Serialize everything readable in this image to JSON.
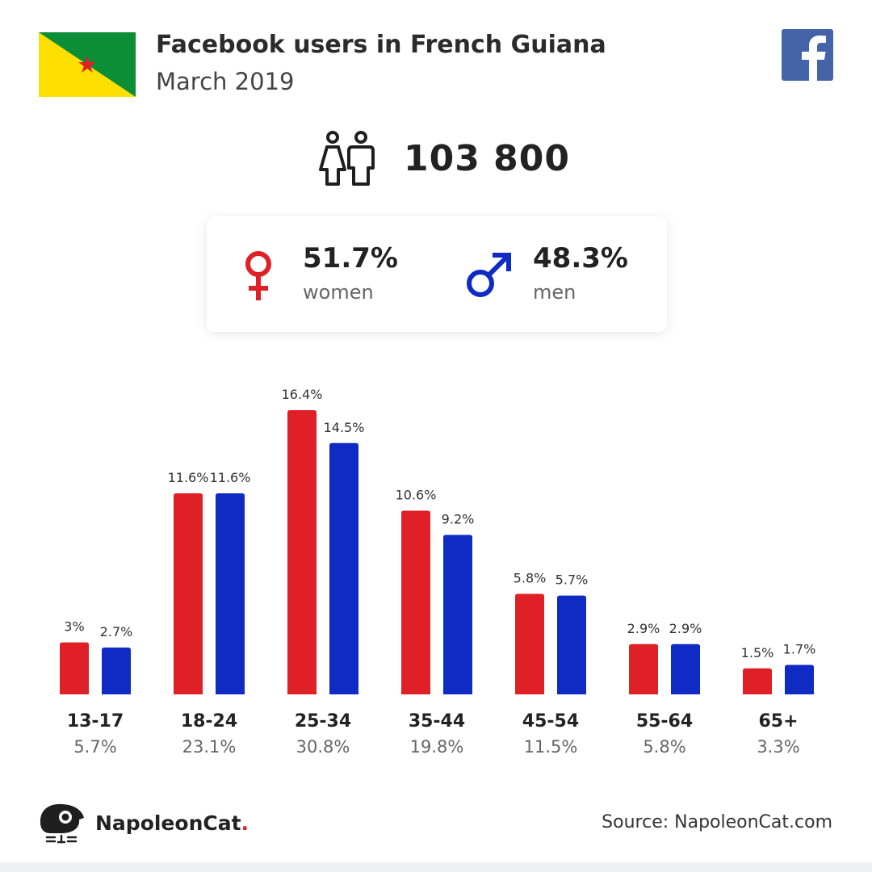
{
  "header": {
    "title": "Facebook users in French Guiana",
    "subtitle": "March 2019"
  },
  "icons": {
    "flag": "french-guiana-flag-icon",
    "brand": "facebook-icon",
    "total": "users-icon",
    "female": "female-symbol-icon",
    "male": "male-symbol-icon",
    "logo": "napoleoncat-logo-icon"
  },
  "totals": {
    "users": "103 800"
  },
  "gender": {
    "women_pct": "51.7%",
    "women_label": "women",
    "men_pct": "48.3%",
    "men_label": "men"
  },
  "colors": {
    "women": "#e02027",
    "men": "#0f2bc3",
    "facebook": "#4463a8",
    "flag_green": "#0b8e36",
    "flag_yellow": "#fde000",
    "flag_star": "#e02027"
  },
  "chart_data": {
    "type": "bar",
    "categories": [
      "13-17",
      "18-24",
      "25-34",
      "35-44",
      "45-54",
      "55-64",
      "65+"
    ],
    "category_totals": [
      "5.7%",
      "23.1%",
      "30.8%",
      "19.8%",
      "11.5%",
      "5.8%",
      "3.3%"
    ],
    "series": [
      {
        "name": "women",
        "values": [
          3,
          11.6,
          16.4,
          10.6,
          5.8,
          2.9,
          1.5
        ],
        "labels": [
          "3%",
          "11.6%",
          "16.4%",
          "10.6%",
          "5.8%",
          "2.9%",
          "1.5%"
        ]
      },
      {
        "name": "men",
        "values": [
          2.7,
          11.6,
          14.5,
          9.2,
          5.7,
          2.9,
          1.7
        ],
        "labels": [
          "2.7%",
          "11.6%",
          "14.5%",
          "9.2%",
          "5.7%",
          "2.9%",
          "1.7%"
        ]
      }
    ],
    "title": "",
    "xlabel": "",
    "ylabel": "",
    "ylim": [
      0,
      16.4
    ],
    "grid": false,
    "legend": "none"
  },
  "footer": {
    "brand": "NapoleonCat",
    "brand_dot": ".",
    "source": "Source: NapoleonCat.com"
  }
}
